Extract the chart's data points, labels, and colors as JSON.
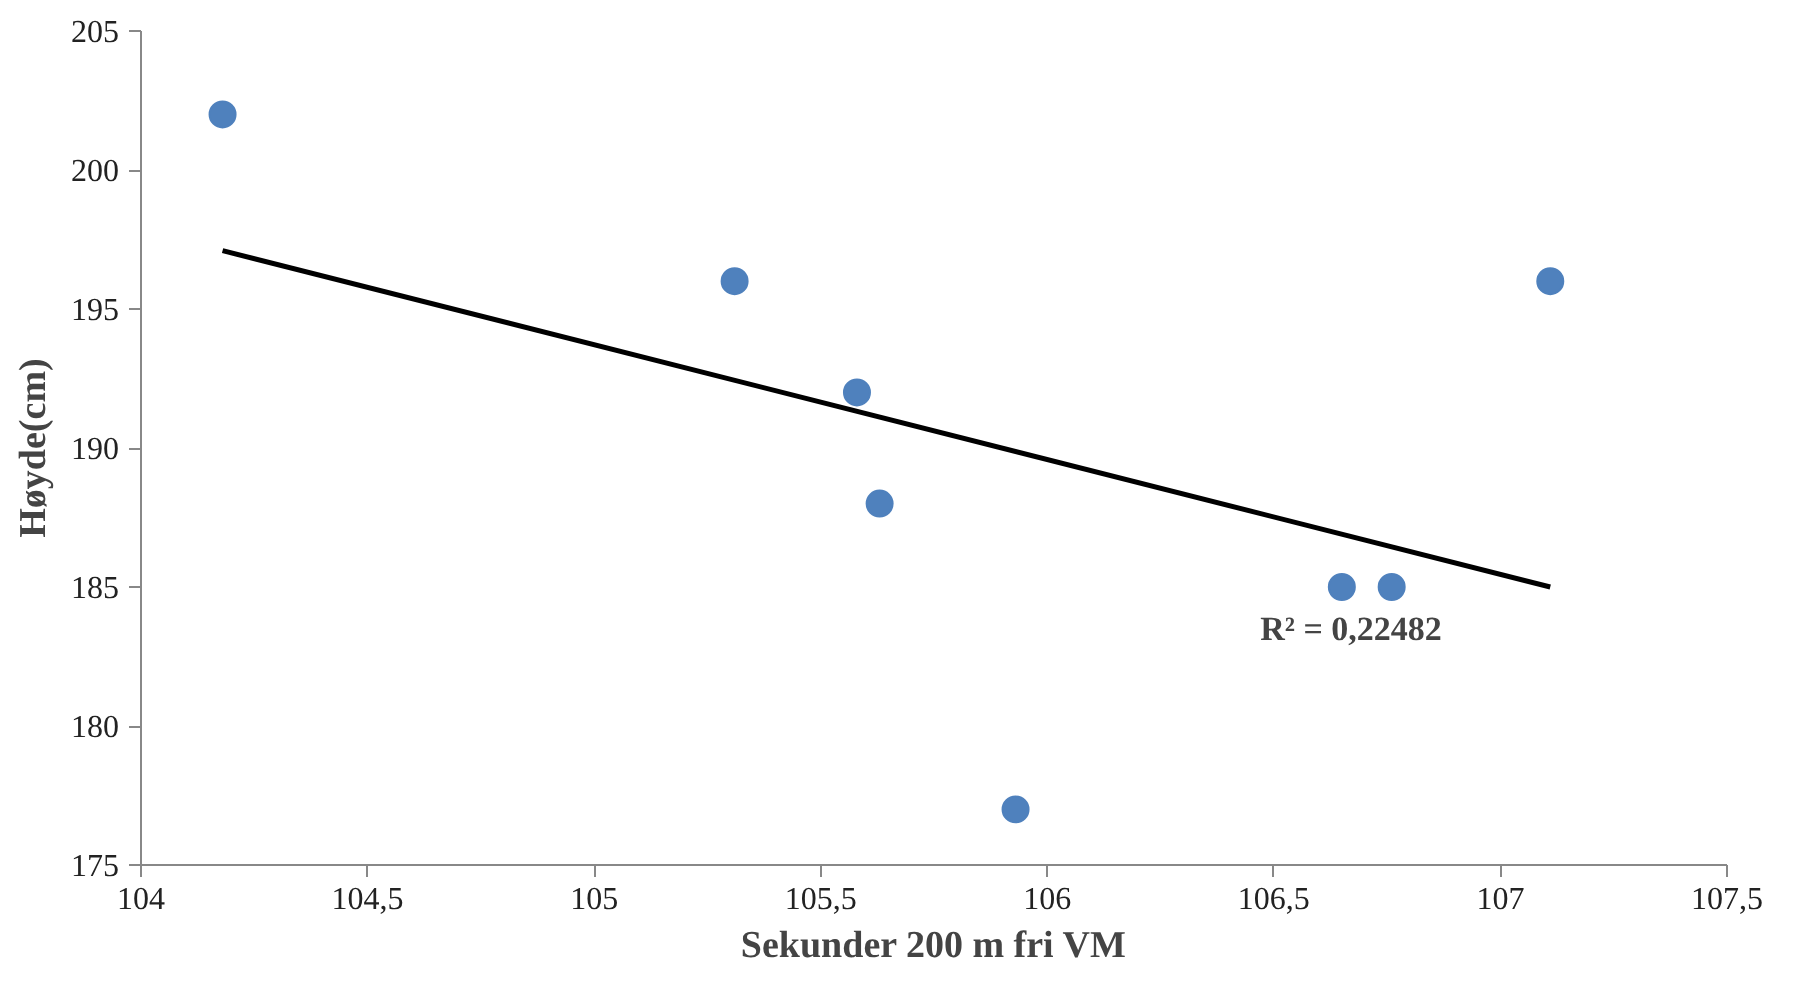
{
  "chart_data": {
    "type": "scatter",
    "xlabel": "Sekunder 200 m fri VM",
    "ylabel": "Høyde(cm)",
    "xlim": [
      104,
      107.5
    ],
    "ylim": [
      175,
      205
    ],
    "xticks": [
      104,
      {
        "value": 104.5,
        "label": "104,5"
      },
      105,
      {
        "value": 105.5,
        "label": "105,5"
      },
      106,
      {
        "value": 106.5,
        "label": "106,5"
      },
      107,
      {
        "value": 107.5,
        "label": "107,5"
      }
    ],
    "yticks": [
      175,
      180,
      185,
      190,
      195,
      200,
      205
    ],
    "grid": false,
    "series": [
      {
        "color": "#4f81bd",
        "marker": "circle",
        "x": [
          104.18,
          105.31,
          105.58,
          105.63,
          105.93,
          106.65,
          106.76,
          107.11
        ],
        "values": [
          202,
          196,
          192,
          188,
          177,
          185,
          185,
          196
        ]
      },
      {
        "type": "line",
        "color": "#000000",
        "x": [
          104.18,
          107.11
        ],
        "values": [
          197.1,
          185.0
        ]
      }
    ],
    "annotations": [
      "R² = 0,22482"
    ]
  }
}
